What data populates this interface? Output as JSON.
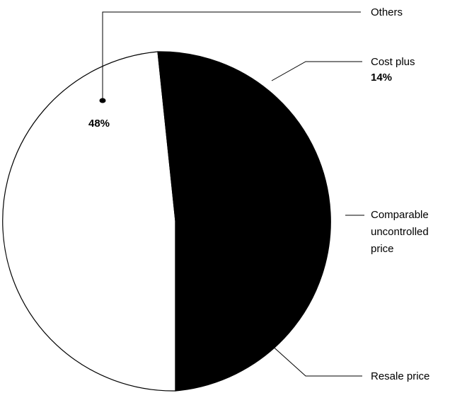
{
  "chart_data": {
    "type": "pie",
    "labels": [
      "Others",
      "Cost plus",
      "Comparable uncontrolled price",
      "Resale price"
    ],
    "values": [
      48,
      14,
      null,
      null
    ],
    "label_lines": {
      "others": [
        "Others"
      ],
      "cost_plus": [
        "Cost plus"
      ],
      "cup": [
        "Comparable",
        "uncontrolled",
        "price"
      ],
      "resale": [
        "Resale price"
      ]
    },
    "value_labels": {
      "others": "48%",
      "cost_plus": "14%"
    },
    "slice_colors": {
      "white": "#ffffff",
      "black": "#000000"
    }
  }
}
